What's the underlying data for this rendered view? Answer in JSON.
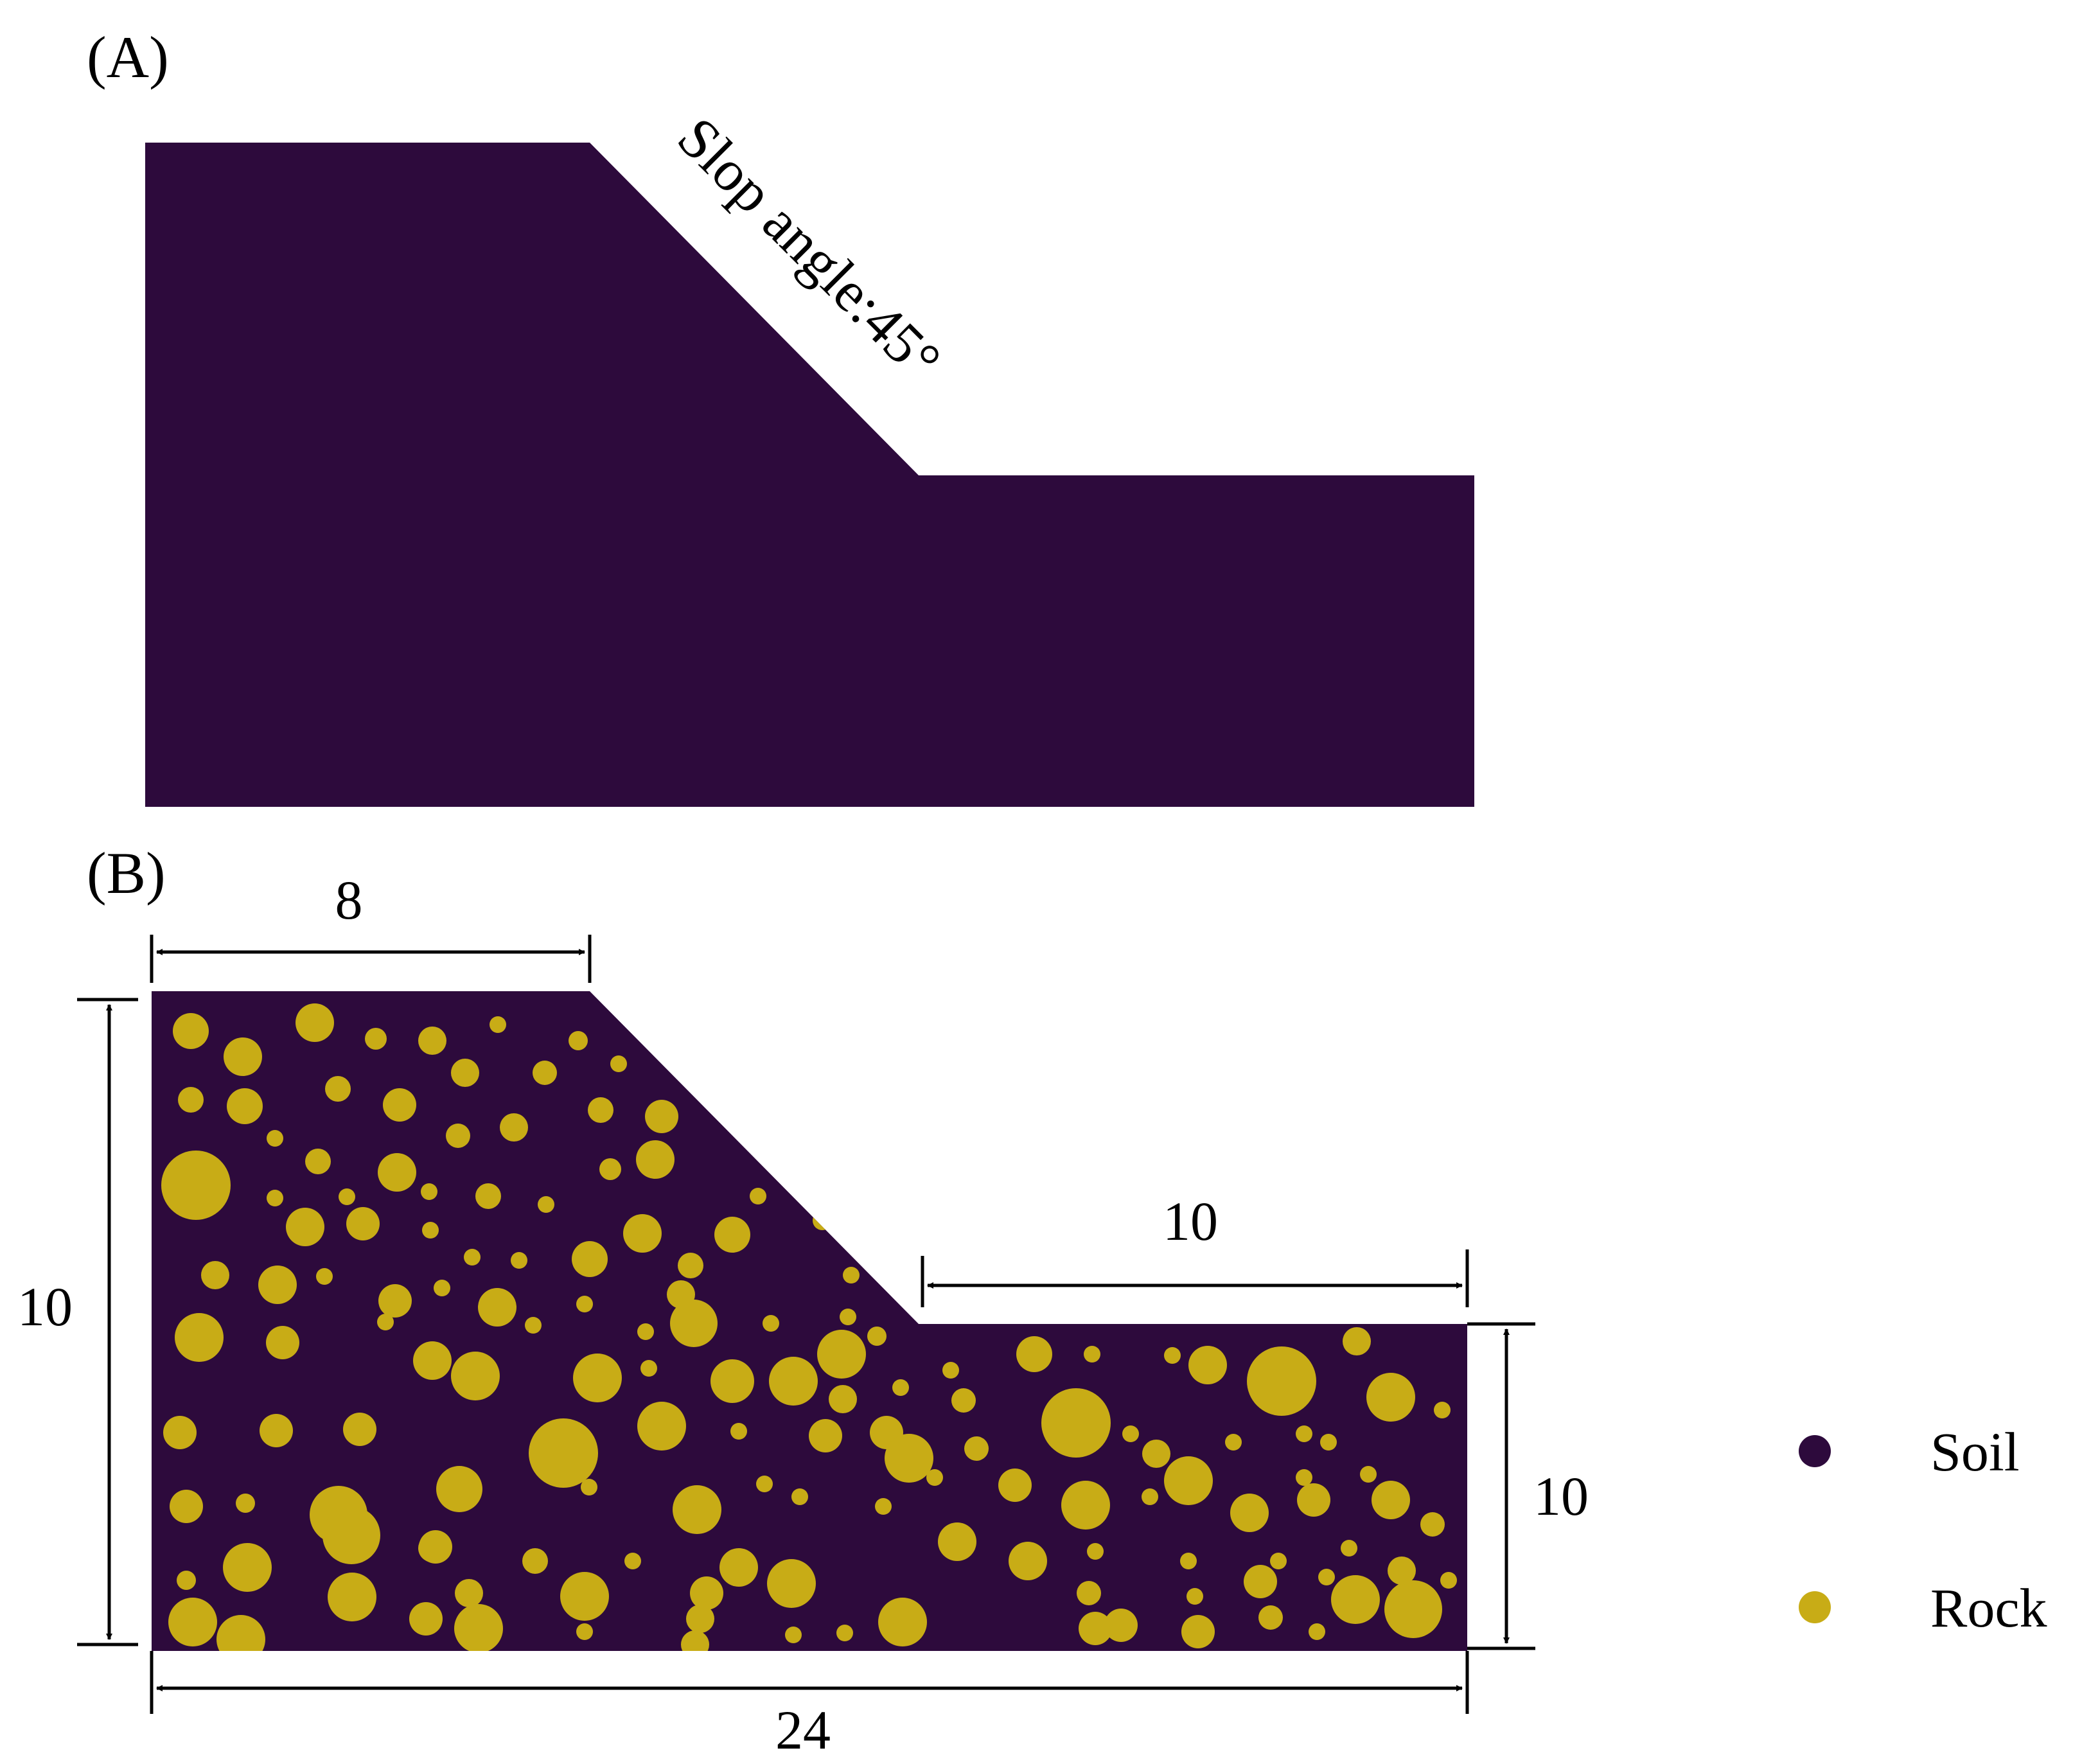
{
  "panel_a": {
    "label": "(A)",
    "annotation": "Slop angle:45°"
  },
  "panel_b": {
    "label": "(B)",
    "dimensions": {
      "top_width": "8",
      "left_height": "10",
      "right_width": "10",
      "right_height": "10",
      "bottom_width": "24"
    }
  },
  "legend": {
    "items": [
      {
        "label": "Soil",
        "color": "#2d0a3c"
      },
      {
        "label": "Rock",
        "color": "#c8ac16"
      }
    ]
  },
  "colors": {
    "soil": "#2d0a3c",
    "rock": "#c8ac16"
  }
}
